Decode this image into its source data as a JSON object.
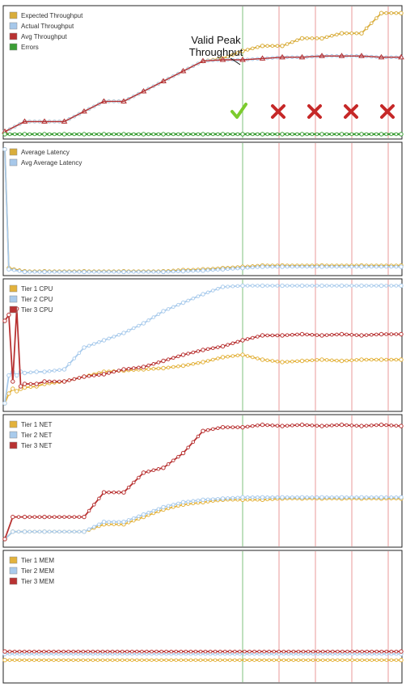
{
  "annotation": {
    "line1": "Valid Peak",
    "line2": "Throughput"
  },
  "markers": {
    "check_x": 300,
    "cross_x": [
      345,
      390,
      435,
      480
    ]
  },
  "colors": {
    "expected": "#d9ad3b",
    "actual": "#a7c8ea",
    "avg": "#b83232",
    "errors": "#3a9e35",
    "valid_line": "#7fc27d",
    "invalid_line": "#ea9a9a",
    "tier1": "#e3b23c",
    "tier2": "#a9cbec",
    "tier3": "#b83232",
    "check": "#7ccb2d",
    "cross": "#c62828"
  },
  "panels": [
    {
      "id": "throughput",
      "legend": [
        {
          "key": "expected",
          "label": "Expected Throughput"
        },
        {
          "key": "actual",
          "label": "Actual Throughput"
        },
        {
          "key": "avg",
          "label": "Avg Throughput"
        },
        {
          "key": "errors",
          "label": "Errors"
        }
      ]
    },
    {
      "id": "latency",
      "legend": [
        {
          "key": "expected",
          "label": "Average Latency"
        },
        {
          "key": "actual",
          "label": "Avg Average Latency"
        }
      ]
    },
    {
      "id": "cpu",
      "legend": [
        {
          "key": "tier1",
          "label": "Tier 1 CPU"
        },
        {
          "key": "tier2",
          "label": "Tier 2 CPU"
        },
        {
          "key": "tier3",
          "label": "Tier 3 CPU"
        }
      ]
    },
    {
      "id": "net",
      "legend": [
        {
          "key": "tier1",
          "label": "Tier 1 NET"
        },
        {
          "key": "tier2",
          "label": "Tier 2 NET"
        },
        {
          "key": "tier3",
          "label": "Tier 3 NET"
        }
      ]
    },
    {
      "id": "mem",
      "legend": [
        {
          "key": "tier1",
          "label": "Tier 1 MEM"
        },
        {
          "key": "tier2",
          "label": "Tier 2 MEM"
        },
        {
          "key": "tier3",
          "label": "Tier 3 MEM"
        }
      ]
    }
  ],
  "chart_data": [
    {
      "type": "line",
      "title": "",
      "x": [
        0,
        5,
        10,
        15,
        20,
        25,
        30,
        35,
        40,
        45,
        50,
        55,
        60,
        65,
        70,
        75,
        80,
        85,
        90,
        95,
        100
      ],
      "series": [
        {
          "name": "Expected Throughput",
          "values": [
            2,
            10,
            10,
            10,
            18,
            26,
            26,
            34,
            42,
            50,
            58,
            60,
            66,
            70,
            70,
            76,
            76,
            80,
            80,
            96,
            96
          ]
        },
        {
          "name": "Actual Throughput",
          "values": [
            2,
            10,
            10,
            10,
            18,
            26,
            26,
            34,
            42,
            50,
            58,
            59,
            59,
            60,
            61,
            61,
            62,
            62,
            62,
            61,
            61
          ]
        },
        {
          "name": "Avg Throughput",
          "values": [
            2,
            10,
            10,
            10,
            18,
            26,
            26,
            34,
            42,
            50,
            58,
            59,
            59,
            60,
            61,
            61,
            62,
            62,
            62,
            61,
            61
          ]
        },
        {
          "name": "Errors",
          "values": [
            0,
            0,
            0,
            0,
            0,
            0,
            0,
            0,
            0,
            0,
            0,
            0,
            0,
            0,
            0,
            0,
            0,
            0,
            0,
            0,
            0
          ]
        }
      ]
    },
    {
      "type": "line",
      "title": "",
      "x": [
        0,
        1,
        5,
        10,
        20,
        30,
        40,
        45,
        50,
        55,
        60,
        65,
        70,
        80,
        90,
        100
      ],
      "series": [
        {
          "name": "Average Latency",
          "values": [
            97,
            4,
            1.5,
            1.5,
            1.5,
            1.5,
            1.5,
            2.5,
            3,
            4,
            5,
            6,
            6,
            6,
            6,
            6
          ]
        },
        {
          "name": "Avg Average Latency",
          "values": [
            97,
            3,
            1,
            1,
            1,
            1,
            1,
            1.5,
            2,
            3,
            4,
            5,
            5,
            5,
            5,
            5
          ]
        }
      ]
    },
    {
      "type": "line",
      "title": "",
      "x": [
        0,
        1,
        2,
        3,
        4,
        5,
        8,
        10,
        15,
        20,
        25,
        30,
        35,
        40,
        45,
        50,
        55,
        60,
        65,
        70,
        75,
        80,
        85,
        90,
        95,
        100
      ],
      "series": [
        {
          "name": "Tier 1 CPU",
          "values": [
            2,
            10,
            14,
            12,
            14,
            15,
            16,
            18,
            20,
            24,
            28,
            29,
            30,
            31,
            33,
            36,
            40,
            42,
            38,
            36,
            37,
            38,
            37,
            38,
            38,
            38
          ]
        },
        {
          "name": "Tier 2 CPU",
          "values": [
            2,
            25,
            28,
            25,
            28,
            27,
            28,
            28,
            30,
            48,
            54,
            60,
            68,
            78,
            85,
            92,
            98,
            99,
            99,
            99,
            99,
            99,
            99,
            99,
            99,
            99
          ]
        },
        {
          "name": "Tier 3 CPU",
          "values": [
            70,
            75,
            20,
            80,
            16,
            18,
            18,
            20,
            20,
            24,
            26,
            30,
            32,
            37,
            42,
            46,
            49,
            54,
            58,
            58,
            59,
            58,
            59,
            58,
            59,
            59
          ]
        }
      ]
    },
    {
      "type": "line",
      "title": "",
      "x": [
        0,
        2,
        5,
        10,
        20,
        25,
        30,
        35,
        40,
        45,
        50,
        55,
        60,
        65,
        70,
        75,
        80,
        85,
        90,
        95,
        100
      ],
      "series": [
        {
          "name": "Tier 1 NET",
          "values": [
            2,
            8,
            8,
            8,
            8,
            14,
            14,
            20,
            26,
            30,
            32,
            34,
            34,
            34,
            35,
            35,
            35,
            35,
            35,
            35,
            35
          ]
        },
        {
          "name": "Tier 2 NET",
          "values": [
            2,
            8,
            8,
            8,
            8,
            16,
            16,
            22,
            28,
            32,
            34,
            35,
            36,
            36,
            36,
            36,
            36,
            36,
            36,
            36,
            36
          ]
        },
        {
          "name": "Tier 3 NET",
          "values": [
            2,
            20,
            20,
            20,
            20,
            40,
            40,
            56,
            60,
            72,
            90,
            93,
            93,
            95,
            94,
            95,
            94,
            95,
            94,
            95,
            94
          ]
        }
      ]
    },
    {
      "type": "line",
      "title": "",
      "x": [
        0,
        100
      ],
      "series": [
        {
          "name": "Tier 1 MEM",
          "values": [
            14,
            14
          ]
        },
        {
          "name": "Tier 2 MEM",
          "values": [
            19,
            19
          ]
        },
        {
          "name": "Tier 3 MEM",
          "values": [
            21,
            21
          ]
        }
      ]
    }
  ]
}
